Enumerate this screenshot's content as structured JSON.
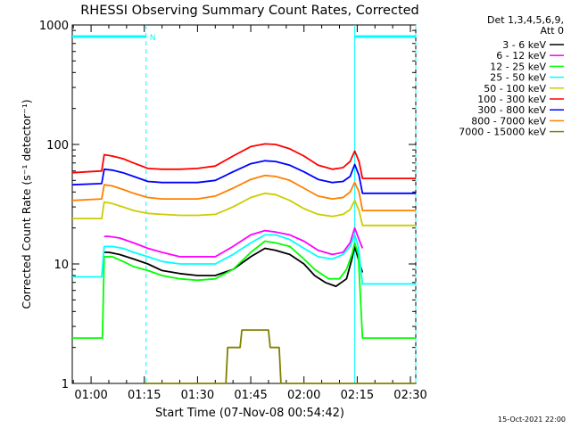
{
  "chart_data": {
    "type": "line",
    "title": "RHESSI Observing Summary Count Rates, Corrected",
    "xlabel": "Start Time (07-Nov-08 00:54:42)",
    "ylabel": "Corrected Count Rate (s⁻¹ detector⁻¹)",
    "y_scale": "log",
    "ylim": [
      1,
      1000
    ],
    "x_range_min": [
      54.7,
      151.5
    ],
    "x_ticks": [
      {
        "label": "01:00",
        "min": 60
      },
      {
        "label": "01:15",
        "min": 75
      },
      {
        "label": "01:30",
        "min": 90
      },
      {
        "label": "01:45",
        "min": 105
      },
      {
        "label": "02:00",
        "min": 120
      },
      {
        "label": "02:15",
        "min": 135
      },
      {
        "label": "02:30",
        "min": 150
      }
    ],
    "y_ticks": [
      {
        "label": "1",
        "value": 1
      },
      {
        "label": "10",
        "value": 10
      },
      {
        "label": "100",
        "value": 100
      },
      {
        "label": "1000",
        "value": 1000
      }
    ],
    "legend": {
      "placement": "right",
      "header": [
        "Det 1,3,4,5,6,9,",
        "Att 0"
      ]
    },
    "night_bars": [
      {
        "x0": 54.7,
        "x1": 75.5,
        "label": ""
      },
      {
        "x0": 134.3,
        "x1": 151.5,
        "label": ""
      }
    ],
    "saa_label": {
      "text": "N",
      "x": 76.5
    },
    "vertical_lines": [
      {
        "x": 75.5,
        "style": "dashed"
      },
      {
        "x": 134.3,
        "style": "solid"
      },
      {
        "x": 151.5,
        "style": "dashed"
      }
    ],
    "series": [
      {
        "name": "3 - 6 keV",
        "color": "#000000",
        "points": [
          [
            63.7,
            12.5
          ],
          [
            65,
            12.5
          ],
          [
            68,
            12
          ],
          [
            72,
            11
          ],
          [
            76,
            10
          ],
          [
            80,
            8.8
          ],
          [
            85,
            8.3
          ],
          [
            90,
            8
          ],
          [
            95,
            8
          ],
          [
            100,
            9
          ],
          [
            105,
            11.5
          ],
          [
            109,
            13.5
          ],
          [
            112,
            13
          ],
          [
            116,
            12
          ],
          [
            120,
            10
          ],
          [
            123,
            8
          ],
          [
            126,
            7
          ],
          [
            129,
            6.5
          ],
          [
            132,
            7.5
          ],
          [
            133.5,
            11
          ],
          [
            134.3,
            14
          ],
          [
            135.3,
            11
          ],
          [
            136.5,
            8.5
          ]
        ]
      },
      {
        "name": "6 - 12 keV",
        "color": "#ff00ff",
        "points": [
          [
            63.7,
            17
          ],
          [
            65,
            17
          ],
          [
            68,
            16.5
          ],
          [
            72,
            15
          ],
          [
            76,
            13.5
          ],
          [
            80,
            12.5
          ],
          [
            85,
            11.5
          ],
          [
            90,
            11.5
          ],
          [
            95,
            11.5
          ],
          [
            100,
            14
          ],
          [
            105,
            17.5
          ],
          [
            109,
            19
          ],
          [
            112,
            18.5
          ],
          [
            116,
            17.5
          ],
          [
            120,
            15.5
          ],
          [
            124,
            13
          ],
          [
            128,
            12
          ],
          [
            131,
            12.5
          ],
          [
            133,
            15
          ],
          [
            134.3,
            20
          ],
          [
            135.5,
            16
          ],
          [
            136.5,
            13.5
          ]
        ]
      },
      {
        "name": "12 - 25 keV",
        "color": "#00ff00",
        "points": [
          [
            54.7,
            2.4
          ],
          [
            60,
            2.4
          ],
          [
            63.2,
            2.4
          ],
          [
            63.7,
            11.5
          ],
          [
            66,
            11.5
          ],
          [
            69,
            10.5
          ],
          [
            72,
            9.5
          ],
          [
            76,
            8.8
          ],
          [
            80,
            8
          ],
          [
            85,
            7.5
          ],
          [
            90,
            7.3
          ],
          [
            95,
            7.5
          ],
          [
            100,
            9
          ],
          [
            105,
            12.5
          ],
          [
            109,
            15.5
          ],
          [
            112,
            15
          ],
          [
            116,
            14
          ],
          [
            120,
            11
          ],
          [
            123,
            9
          ],
          [
            127,
            7.5
          ],
          [
            130,
            7.5
          ],
          [
            132,
            9
          ],
          [
            133.5,
            12
          ],
          [
            134.3,
            15
          ],
          [
            135.3,
            12
          ],
          [
            136.5,
            2.4
          ],
          [
            151.5,
            2.4
          ]
        ]
      },
      {
        "name": "25 - 50 keV",
        "color": "#00ffff",
        "points": [
          [
            54.7,
            7.8
          ],
          [
            63,
            7.8
          ],
          [
            63.7,
            14
          ],
          [
            66,
            14
          ],
          [
            69,
            13.5
          ],
          [
            72,
            12.5
          ],
          [
            76,
            11.5
          ],
          [
            80,
            10.5
          ],
          [
            85,
            10
          ],
          [
            90,
            10
          ],
          [
            95,
            10
          ],
          [
            100,
            12
          ],
          [
            105,
            15
          ],
          [
            109,
            17.5
          ],
          [
            112,
            17.5
          ],
          [
            116,
            16
          ],
          [
            120,
            13.5
          ],
          [
            124,
            11.5
          ],
          [
            128,
            11
          ],
          [
            131,
            12
          ],
          [
            133,
            14
          ],
          [
            134.3,
            17.5
          ],
          [
            135.3,
            14
          ],
          [
            136.5,
            6.8
          ],
          [
            151.5,
            6.8
          ]
        ]
      },
      {
        "name": "50 - 100 keV",
        "color": "#cccc00",
        "points": [
          [
            54.7,
            24
          ],
          [
            63,
            24
          ],
          [
            63.7,
            33
          ],
          [
            66,
            32
          ],
          [
            69,
            30
          ],
          [
            72,
            28
          ],
          [
            76,
            26.5
          ],
          [
            80,
            26
          ],
          [
            85,
            25.5
          ],
          [
            90,
            25.5
          ],
          [
            95,
            26
          ],
          [
            100,
            30
          ],
          [
            105,
            36
          ],
          [
            109,
            39
          ],
          [
            112,
            38
          ],
          [
            116,
            34
          ],
          [
            120,
            29
          ],
          [
            124,
            26
          ],
          [
            128,
            25
          ],
          [
            131,
            26
          ],
          [
            133,
            28.5
          ],
          [
            134.3,
            34
          ],
          [
            135.5,
            28
          ],
          [
            136.5,
            21
          ],
          [
            151.5,
            21
          ]
        ]
      },
      {
        "name": "100 - 300 keV",
        "color": "#ff0000",
        "points": [
          [
            54.7,
            58
          ],
          [
            63,
            60
          ],
          [
            63.7,
            82
          ],
          [
            66,
            80
          ],
          [
            69,
            76
          ],
          [
            72,
            70
          ],
          [
            76,
            63
          ],
          [
            80,
            62
          ],
          [
            85,
            62
          ],
          [
            90,
            63
          ],
          [
            95,
            66
          ],
          [
            100,
            80
          ],
          [
            105,
            96
          ],
          [
            109,
            101
          ],
          [
            112,
            100
          ],
          [
            116,
            92
          ],
          [
            120,
            80
          ],
          [
            124,
            67
          ],
          [
            128,
            62
          ],
          [
            131,
            64
          ],
          [
            133,
            72
          ],
          [
            134.3,
            88
          ],
          [
            135.5,
            72
          ],
          [
            136.5,
            52
          ],
          [
            151.5,
            52
          ]
        ]
      },
      {
        "name": "300 - 800 keV",
        "color": "#0000ff",
        "points": [
          [
            54.7,
            46
          ],
          [
            63,
            47
          ],
          [
            63.7,
            62
          ],
          [
            66,
            61
          ],
          [
            69,
            58
          ],
          [
            72,
            54
          ],
          [
            76,
            49
          ],
          [
            80,
            48
          ],
          [
            85,
            48
          ],
          [
            90,
            48
          ],
          [
            95,
            50
          ],
          [
            100,
            59
          ],
          [
            105,
            69
          ],
          [
            109,
            73
          ],
          [
            112,
            72
          ],
          [
            116,
            67
          ],
          [
            120,
            59
          ],
          [
            124,
            51
          ],
          [
            128,
            48
          ],
          [
            131,
            49
          ],
          [
            133,
            54
          ],
          [
            134.3,
            68
          ],
          [
            135.5,
            55
          ],
          [
            136.5,
            39
          ],
          [
            151.5,
            39
          ]
        ]
      },
      {
        "name": "800 - 7000 keV",
        "color": "#ff8000",
        "points": [
          [
            54.7,
            34
          ],
          [
            63,
            35
          ],
          [
            63.7,
            46
          ],
          [
            66,
            45
          ],
          [
            69,
            42
          ],
          [
            72,
            39
          ],
          [
            76,
            36
          ],
          [
            80,
            35
          ],
          [
            85,
            35
          ],
          [
            90,
            35
          ],
          [
            95,
            37
          ],
          [
            100,
            43
          ],
          [
            105,
            51
          ],
          [
            109,
            55
          ],
          [
            112,
            54
          ],
          [
            116,
            50
          ],
          [
            120,
            43
          ],
          [
            124,
            37
          ],
          [
            128,
            35
          ],
          [
            131,
            36
          ],
          [
            133,
            40
          ],
          [
            134.3,
            48
          ],
          [
            135.5,
            40
          ],
          [
            136.5,
            28
          ],
          [
            151.5,
            28
          ]
        ]
      },
      {
        "name": "7000 - 15000 keV",
        "color": "#808000",
        "points": [
          [
            75,
            1
          ],
          [
            98,
            1
          ],
          [
            98.5,
            2
          ],
          [
            102,
            2
          ],
          [
            102.5,
            2.8
          ],
          [
            110,
            2.8
          ],
          [
            110.5,
            2
          ],
          [
            113,
            2
          ],
          [
            113.5,
            1
          ],
          [
            151.5,
            1
          ]
        ]
      }
    ],
    "footer_timestamp": "15-Oct-2021 22:00"
  }
}
